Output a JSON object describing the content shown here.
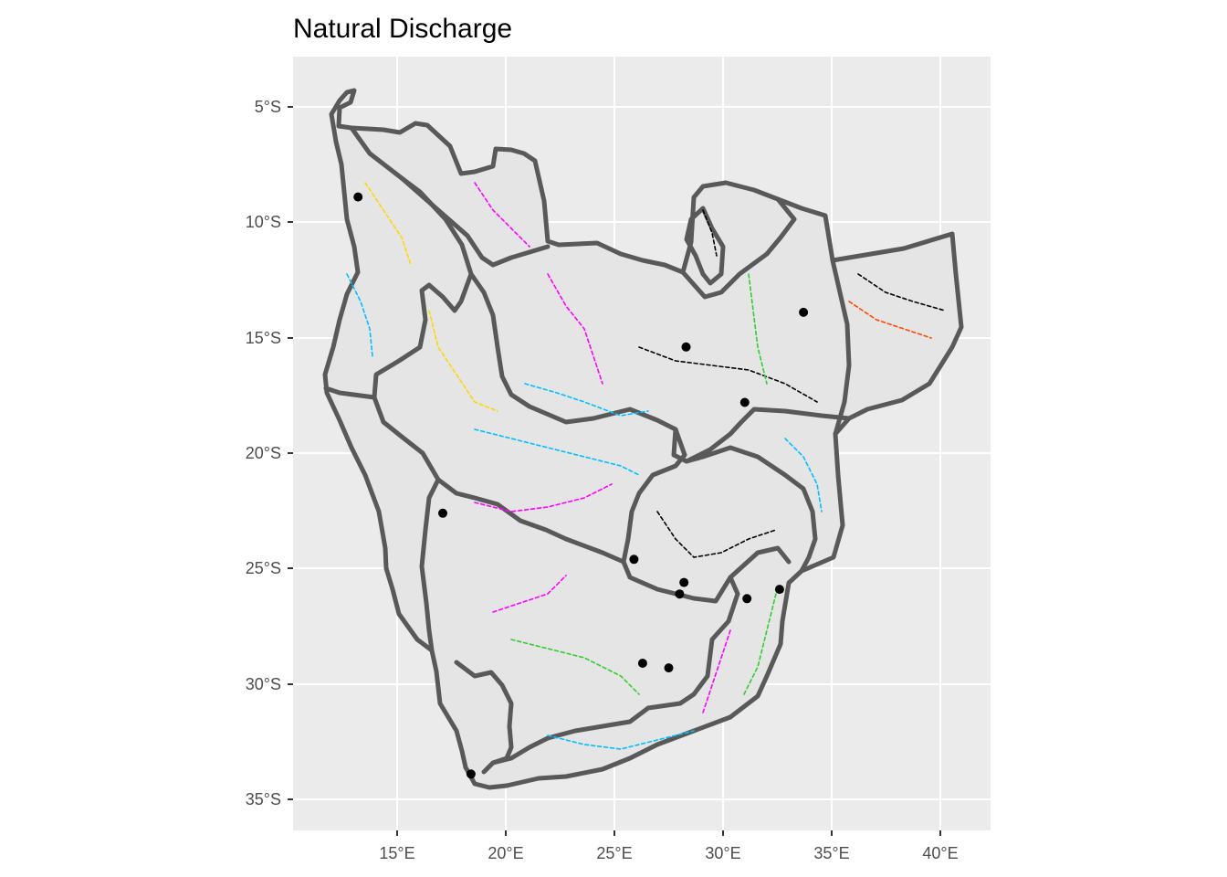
{
  "title": "Natural Discharge",
  "map": {
    "lon_ticks": [
      "15°E",
      "20°E",
      "25°E",
      "30°E",
      "35°E",
      "40°E"
    ],
    "lat_ticks": [
      "5°S",
      "10°S",
      "15°S",
      "20°S",
      "25°S",
      "30°S",
      "35°S"
    ],
    "panel_color": "#ebebeb",
    "basin_fill": "#e5e5e5",
    "basin_outline_color": "#595959",
    "river_colors": [
      "#000000",
      "#00bfff",
      "#ff00ff",
      "#ffd700",
      "#32cd32",
      "#ff4500"
    ],
    "stations": [
      {
        "lon": 13.2,
        "lat": -8.9
      },
      {
        "lon": 28.3,
        "lat": -15.4
      },
      {
        "lon": 33.7,
        "lat": -13.9
      },
      {
        "lon": 31.0,
        "lat": -17.8
      },
      {
        "lon": 17.1,
        "lat": -22.6
      },
      {
        "lon": 25.9,
        "lat": -24.6
      },
      {
        "lon": 28.2,
        "lat": -25.6
      },
      {
        "lon": 28.0,
        "lat": -26.1
      },
      {
        "lon": 31.1,
        "lat": -26.3
      },
      {
        "lon": 32.6,
        "lat": -25.9
      },
      {
        "lon": 26.3,
        "lat": -29.1
      },
      {
        "lon": 27.5,
        "lat": -29.3
      },
      {
        "lon": 18.4,
        "lat": -33.9
      }
    ]
  }
}
